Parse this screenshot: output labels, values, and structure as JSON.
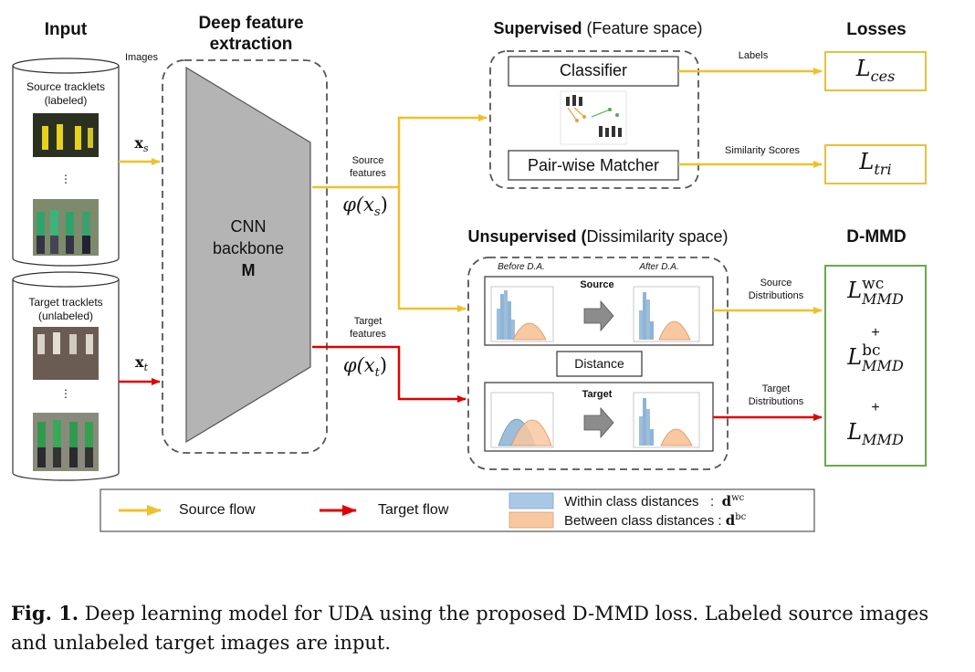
{
  "colors": {
    "source": "#f0c02a",
    "target": "#e00000",
    "dmmd_border": "#6aa84f",
    "within_class": "#a9c8e6",
    "between_class": "#f8c8a0"
  },
  "input": {
    "header": "Input",
    "images_label": "Images",
    "source_db": {
      "line1": "Source tracklets",
      "line2": "(labeled)",
      "dots": "⋮"
    },
    "target_db": {
      "line1": "Target tracklets",
      "line2": "(unlabeled)",
      "dots": "⋮"
    },
    "xs": "x",
    "xs_sub": "s",
    "xt": "x",
    "xt_sub": "t"
  },
  "extraction": {
    "header_line1": "Deep feature",
    "header_line2": "extraction",
    "cnn_line1": "CNN",
    "cnn_line2": "backbone",
    "cnn_line3": "M"
  },
  "features": {
    "source_line1": "Source",
    "source_line2": "features",
    "phi_s": "φ(x",
    "phi_s_sub": "s",
    "target_line1": "Target",
    "target_line2": "features",
    "phi_t": "φ(x",
    "phi_t_sub": "t"
  },
  "supervised": {
    "header_bold": "Supervised",
    "header_rest": " (Feature space)",
    "classifier": "Classifier",
    "matcher": "Pair-wise Matcher",
    "labels": "Labels",
    "similarity": "Similarity Scores"
  },
  "unsupervised": {
    "header_bold": "Unsupervised (",
    "header_rest": "Dissimilarity space)",
    "before_da": "Before D.A.",
    "after_da": "After D.A.",
    "source_panel": "Source",
    "target_panel": "Target",
    "distance": "Distance",
    "source_dist_line1": "Source",
    "source_dist_line2": "Distributions",
    "target_dist_line1": "Target",
    "target_dist_line2": "Distributions"
  },
  "losses": {
    "header": "Losses",
    "ces": "L",
    "ces_sub": "ces",
    "tri": "L",
    "tri_sub": "tri"
  },
  "dmmd": {
    "header": "D-MMD",
    "l1": "L",
    "l1_sup": "wc",
    "l1_sub": "MMD",
    "plus1": "+",
    "l2": "L",
    "l2_sup": "bc",
    "l2_sub": "MMD",
    "plus2": "+",
    "l3": "L",
    "l3_sub": "MMD"
  },
  "legend": {
    "source_flow": "Source flow",
    "target_flow": "Target flow",
    "within": "Within class distances   :  ",
    "within_sym": "d",
    "within_sup": "wc",
    "between": "Between class distances : ",
    "between_sym": "d",
    "between_sup": "bc"
  },
  "caption": {
    "label": "Fig. 1.",
    "text": " Deep learning model for UDA using the proposed D-MMD loss. Labeled source images and unlabeled target images are input."
  }
}
